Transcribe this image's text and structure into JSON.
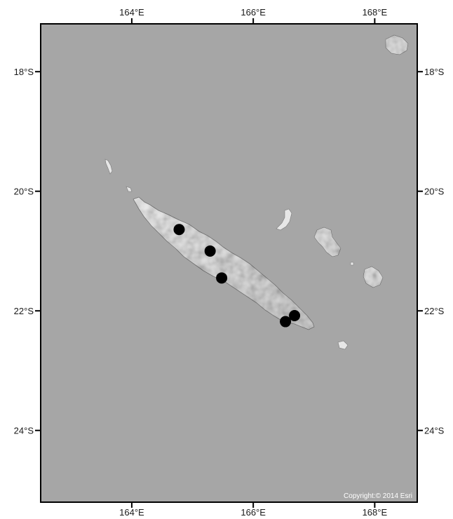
{
  "map": {
    "extent": {
      "lon_min": 162.5,
      "lon_max": 168.7,
      "lat_min": -25.2,
      "lat_max": -17.2
    },
    "colors": {
      "ocean": "#a6a6a6",
      "land": "#ececec",
      "land_shade": "#c9c9c9",
      "frame": "#000000",
      "point": "#000000"
    },
    "lon_ticks": [
      {
        "value": 164,
        "label": "164°E"
      },
      {
        "value": 166,
        "label": "166°E"
      },
      {
        "value": 168,
        "label": "168°E"
      }
    ],
    "lat_ticks": [
      {
        "value": -18,
        "label": "18°S"
      },
      {
        "value": -20,
        "label": "20°S"
      },
      {
        "value": -22,
        "label": "22°S"
      },
      {
        "value": -24,
        "label": "24°S"
      }
    ],
    "points": [
      {
        "lon": 164.78,
        "lat": -20.64
      },
      {
        "lon": 165.29,
        "lat": -21.0
      },
      {
        "lon": 165.48,
        "lat": -21.45
      },
      {
        "lon": 166.68,
        "lat": -22.08
      },
      {
        "lon": 166.53,
        "lat": -22.18
      }
    ],
    "copyright": "Copyright:© 2014 Esri"
  }
}
